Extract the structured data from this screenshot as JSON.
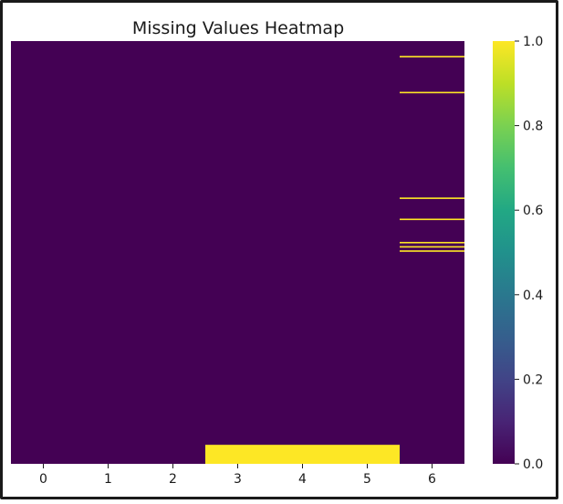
{
  "chart_data": {
    "type": "heatmap",
    "title": "Missing Values Heatmap",
    "xlabel": "",
    "ylabel": "",
    "columns": [
      "0",
      "1",
      "2",
      "3",
      "4",
      "5",
      "6"
    ],
    "n_rows": 200,
    "missing_cells": [
      {
        "col": 6,
        "rows": [
          7,
          24,
          74,
          84,
          95,
          97,
          99
        ]
      },
      {
        "col": 3,
        "rows_from": 191,
        "rows_to": 200
      },
      {
        "col": 4,
        "rows_from": 191,
        "rows_to": 200
      },
      {
        "col": 5,
        "rows_from": 191,
        "rows_to": 200
      }
    ],
    "colorbar": {
      "colormap": "viridis",
      "range": [
        0.0,
        1.0
      ],
      "ticks": [
        "0.0",
        "0.2",
        "0.4",
        "0.6",
        "0.8",
        "1.0"
      ],
      "low_color": "#440154",
      "high_color": "#fde725"
    },
    "grid": false,
    "legend": "colorbar-right"
  }
}
